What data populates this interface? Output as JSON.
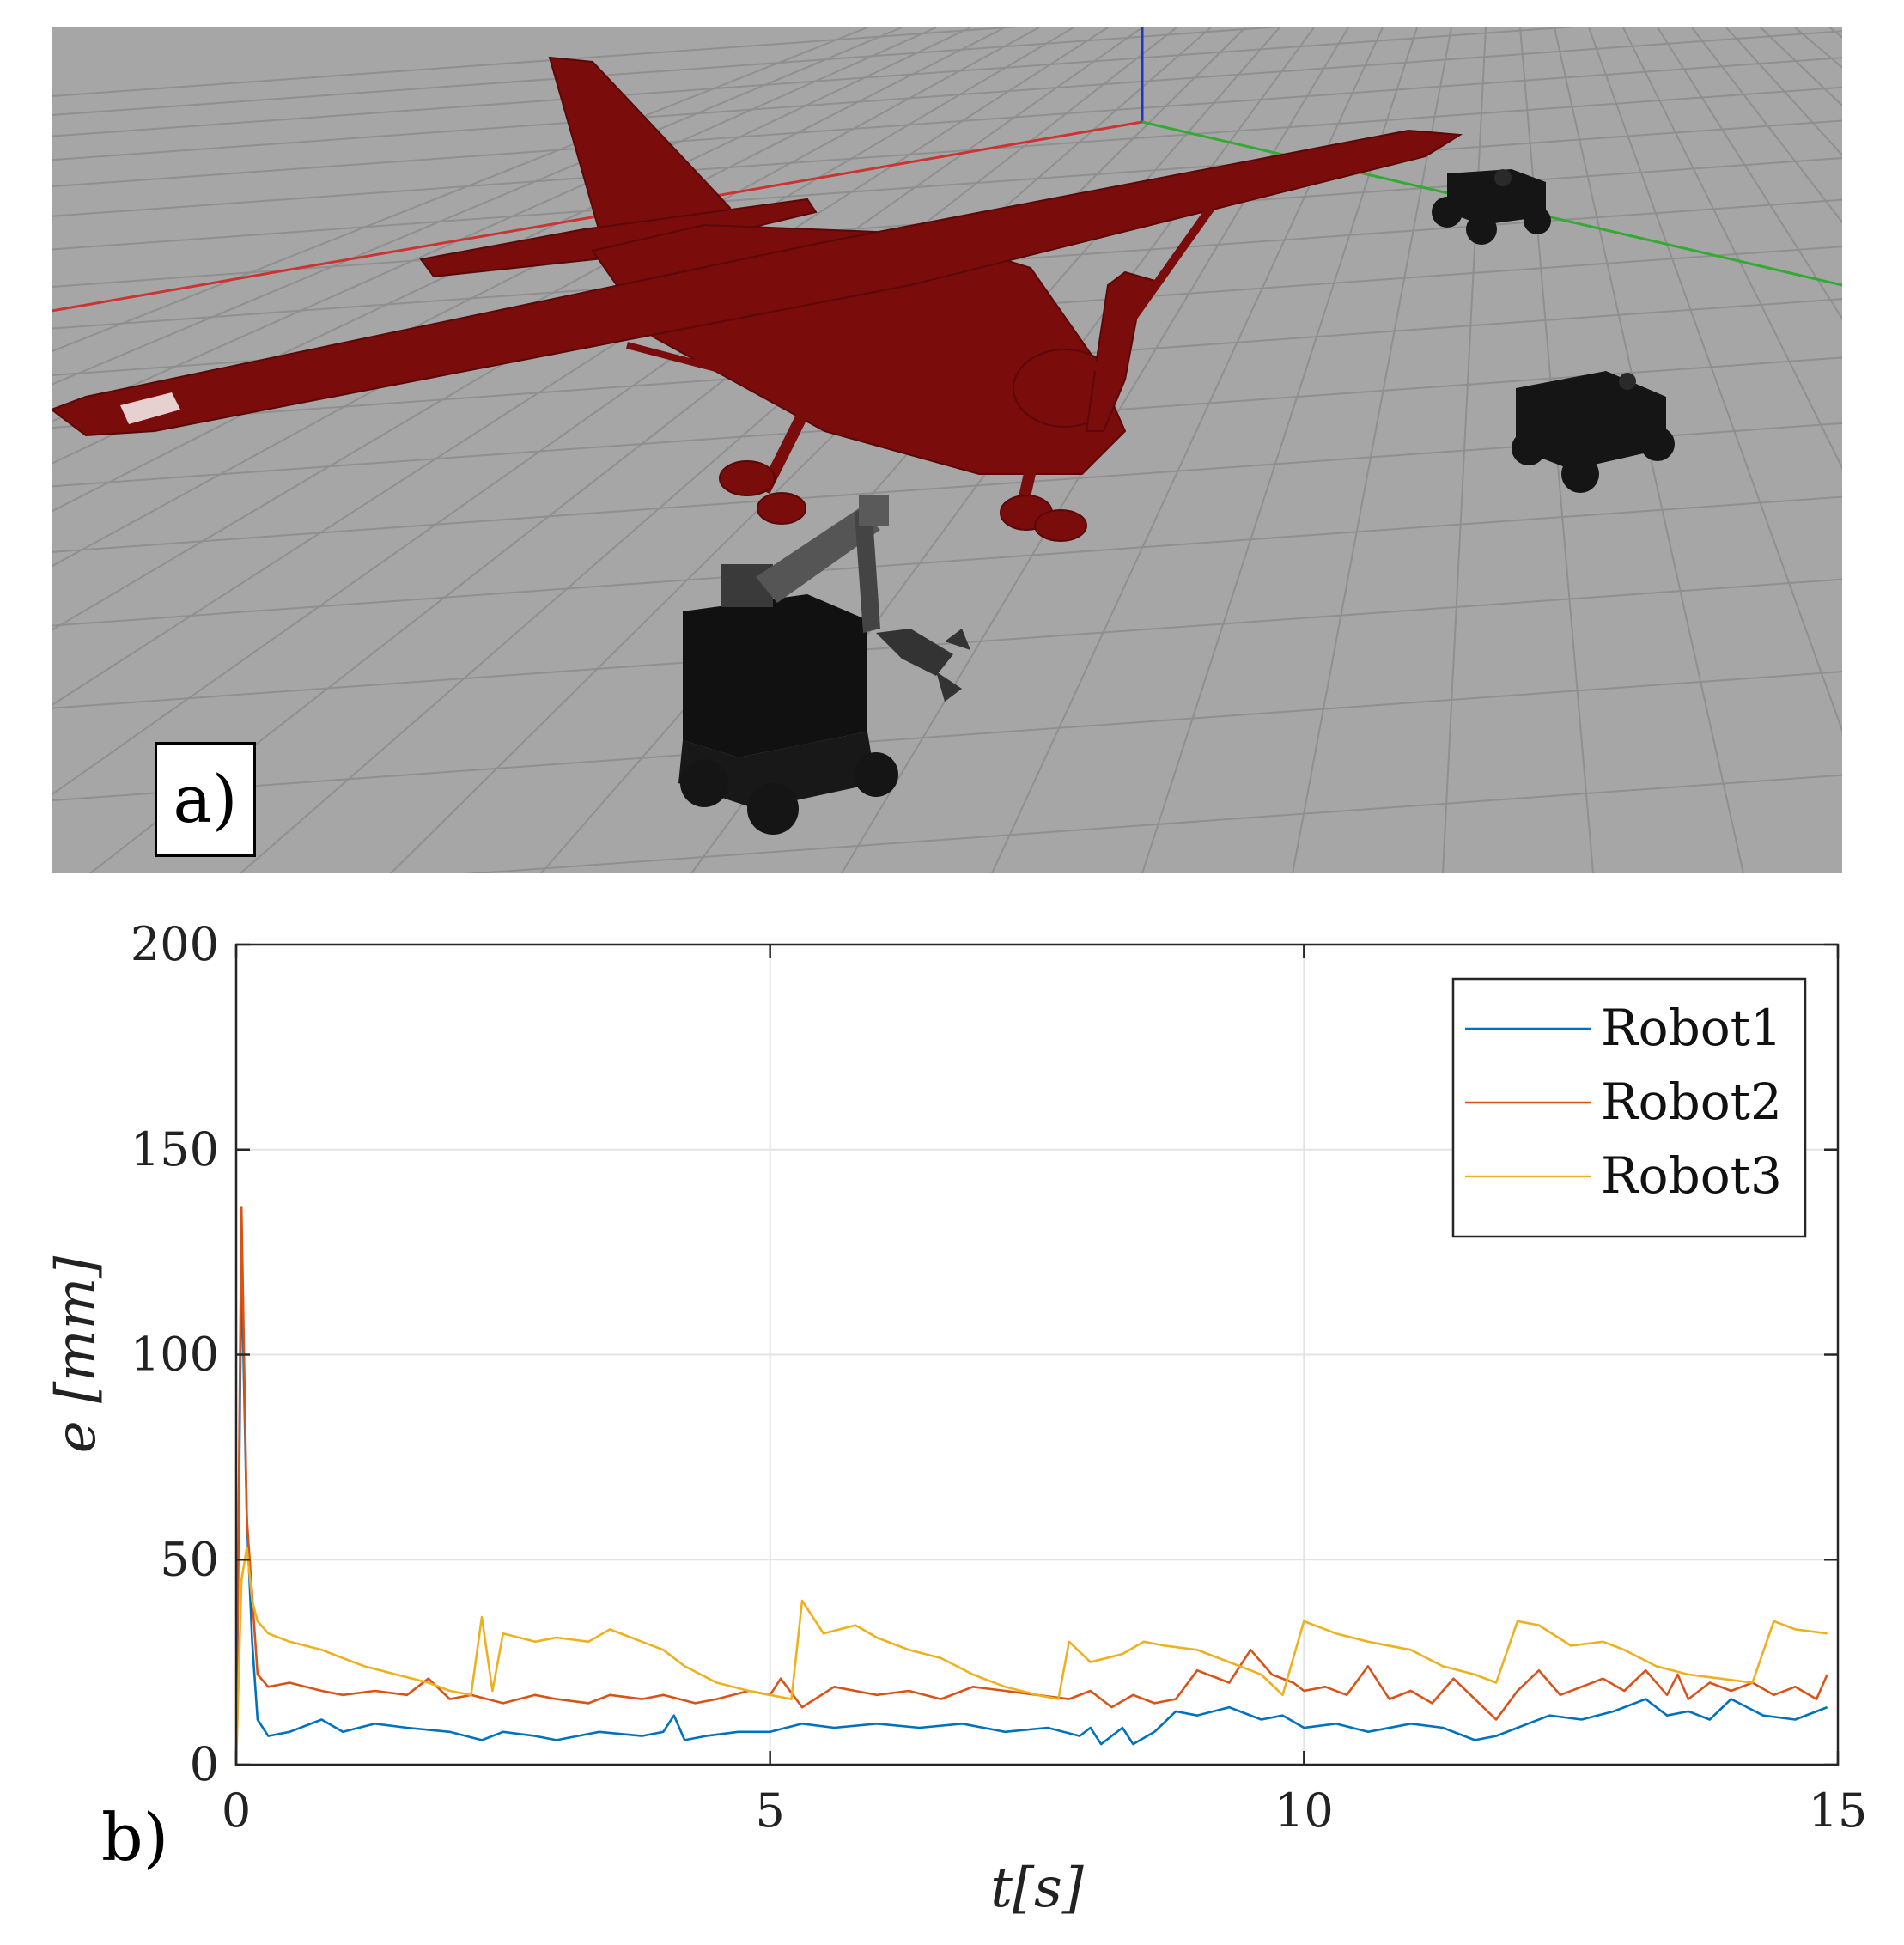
{
  "panel_a": {
    "label": "a)",
    "colors": {
      "floor": "#a6a6a6",
      "grid": "#8f8f8f",
      "plane": "#7a0c0c",
      "axis_x": "#cc3333",
      "axis_y": "#33aa33",
      "axis_z": "#2233cc",
      "robot": "#151515"
    }
  },
  "panel_b": {
    "label": "b)"
  },
  "chart_data": {
    "type": "line",
    "title": "",
    "xlabel": "t[s]",
    "ylabel": "e [mm]",
    "xlim": [
      0,
      15
    ],
    "ylim": [
      0,
      200
    ],
    "xticks": [
      "0",
      "5",
      "10",
      "15"
    ],
    "yticks": [
      "0",
      "50",
      "100",
      "150",
      "200"
    ],
    "grid": true,
    "legend_position": "top-right",
    "series": [
      {
        "name": "Robot1",
        "color": "#0072bd",
        "x": [
          0,
          0.05,
          0.1,
          0.15,
          0.2,
          0.3,
          0.5,
          0.8,
          1.0,
          1.3,
          1.6,
          2.0,
          2.3,
          2.5,
          2.8,
          3.0,
          3.4,
          3.8,
          4.0,
          4.1,
          4.2,
          4.4,
          4.7,
          5.0,
          5.3,
          5.6,
          6.0,
          6.4,
          6.8,
          7.2,
          7.6,
          7.9,
          8.0,
          8.1,
          8.3,
          8.4,
          8.6,
          8.8,
          9.0,
          9.3,
          9.6,
          9.8,
          10.0,
          10.3,
          10.6,
          11.0,
          11.3,
          11.6,
          11.8,
          12.0,
          12.3,
          12.6,
          12.9,
          13.2,
          13.4,
          13.6,
          13.8,
          14.0,
          14.3,
          14.6,
          14.9
        ],
        "y": [
          0,
          122,
          60,
          30,
          11,
          7,
          8,
          11,
          8,
          10,
          9,
          8,
          6,
          8,
          7,
          6,
          8,
          7,
          8,
          12,
          6,
          7,
          8,
          8,
          10,
          9,
          10,
          9,
          10,
          8,
          9,
          7,
          9,
          5,
          9,
          5,
          8,
          13,
          12,
          14,
          11,
          12,
          9,
          10,
          8,
          10,
          9,
          6,
          7,
          9,
          12,
          11,
          13,
          16,
          12,
          13,
          11,
          16,
          12,
          11,
          14
        ]
      },
      {
        "name": "Robot2",
        "color": "#d95319",
        "x": [
          0,
          0.05,
          0.1,
          0.2,
          0.3,
          0.5,
          0.8,
          1.0,
          1.3,
          1.6,
          1.8,
          2.0,
          2.2,
          2.5,
          2.8,
          3.0,
          3.3,
          3.5,
          3.8,
          4.0,
          4.3,
          4.5,
          4.8,
          5.0,
          5.1,
          5.3,
          5.6,
          6.0,
          6.3,
          6.6,
          6.9,
          7.2,
          7.5,
          7.8,
          8.0,
          8.2,
          8.4,
          8.6,
          8.8,
          9.0,
          9.3,
          9.5,
          9.7,
          9.9,
          10.0,
          10.2,
          10.4,
          10.6,
          10.8,
          11.0,
          11.2,
          11.4,
          11.6,
          11.8,
          12.0,
          12.2,
          12.4,
          12.6,
          12.8,
          13.0,
          13.2,
          13.4,
          13.5,
          13.6,
          13.8,
          14.0,
          14.2,
          14.4,
          14.6,
          14.8,
          14.9
        ],
        "y": [
          0,
          136,
          60,
          22,
          19,
          20,
          18,
          17,
          18,
          17,
          21,
          16,
          17,
          15,
          17,
          16,
          15,
          17,
          16,
          17,
          15,
          16,
          18,
          17,
          21,
          14,
          19,
          17,
          18,
          16,
          19,
          18,
          17,
          16,
          18,
          14,
          17,
          15,
          16,
          23,
          20,
          28,
          22,
          20,
          18,
          19,
          17,
          24,
          16,
          18,
          15,
          21,
          16,
          11,
          18,
          23,
          17,
          19,
          21,
          18,
          23,
          17,
          22,
          16,
          20,
          18,
          20,
          17,
          19,
          16,
          22
        ]
      },
      {
        "name": "Robot3",
        "color": "#edb120",
        "x": [
          0,
          0.05,
          0.1,
          0.15,
          0.2,
          0.3,
          0.5,
          0.8,
          1.0,
          1.2,
          1.5,
          1.8,
          2.0,
          2.2,
          2.3,
          2.4,
          2.5,
          2.8,
          3.0,
          3.3,
          3.5,
          3.8,
          4.0,
          4.2,
          4.5,
          4.8,
          5.0,
          5.2,
          5.3,
          5.5,
          5.8,
          6.0,
          6.3,
          6.6,
          6.9,
          7.2,
          7.5,
          7.7,
          7.8,
          8.0,
          8.3,
          8.5,
          8.7,
          9.0,
          9.3,
          9.6,
          9.8,
          10.0,
          10.3,
          10.6,
          11.0,
          11.3,
          11.6,
          11.8,
          12.0,
          12.2,
          12.5,
          12.8,
          13.0,
          13.3,
          13.6,
          13.9,
          14.2,
          14.4,
          14.6,
          14.9
        ],
        "y": [
          0,
          45,
          53,
          40,
          35,
          32,
          30,
          28,
          26,
          24,
          22,
          20,
          18,
          17,
          36,
          18,
          32,
          30,
          31,
          30,
          33,
          30,
          28,
          24,
          20,
          18,
          17,
          16,
          40,
          32,
          34,
          31,
          28,
          26,
          22,
          19,
          17,
          16,
          30,
          25,
          27,
          30,
          29,
          28,
          25,
          22,
          17,
          35,
          32,
          30,
          28,
          24,
          22,
          20,
          35,
          34,
          29,
          30,
          28,
          24,
          22,
          21,
          20,
          35,
          33,
          32
        ]
      }
    ]
  }
}
